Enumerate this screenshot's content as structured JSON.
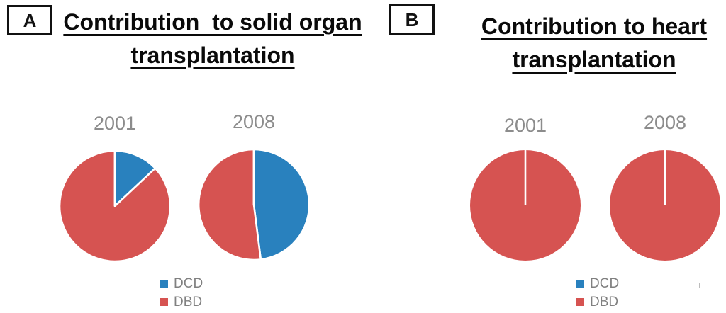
{
  "chart_data": [
    {
      "type": "pie",
      "panel_label": "A",
      "title": "Contribution  to solid organ transplantation",
      "title_lines": [
        "Contribution  to solid organ",
        "transplantation"
      ],
      "legend_position": "bottom",
      "units": "percent",
      "legend": [
        {
          "label": "DCD",
          "color": "#2981BE"
        },
        {
          "label": "DBD",
          "color": "#D65351"
        }
      ],
      "pies": [
        {
          "year": "2001",
          "slices": [
            {
              "label": "DCD",
              "value": 13
            },
            {
              "label": "DBD",
              "value": 87
            }
          ]
        },
        {
          "year": "2008",
          "slices": [
            {
              "label": "DCD",
              "value": 48
            },
            {
              "label": "DBD",
              "value": 52
            }
          ]
        }
      ]
    },
    {
      "type": "pie",
      "panel_label": "B",
      "title": "Contribution to heart transplantation",
      "title_lines": [
        "Contribution to heart",
        "transplantation"
      ],
      "legend_position": "bottom",
      "units": "percent",
      "legend": [
        {
          "label": "DCD",
          "color": "#2981BE"
        },
        {
          "label": "DBD",
          "color": "#D65351"
        }
      ],
      "pies": [
        {
          "year": "2001",
          "slices": [
            {
              "label": "DCD",
              "value": 0
            },
            {
              "label": "DBD",
              "value": 100
            }
          ]
        },
        {
          "year": "2008",
          "slices": [
            {
              "label": "DCD",
              "value": 0
            },
            {
              "label": "DBD",
              "value": 100
            }
          ]
        }
      ]
    }
  ]
}
